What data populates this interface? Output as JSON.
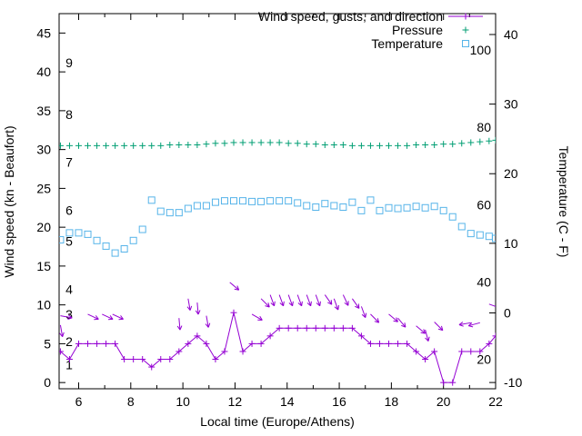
{
  "chart_data": {
    "type": "line",
    "title": "",
    "legend": [
      {
        "label": "Wind speed, gusts, and direction",
        "marker": "line-plus",
        "color": "#9400d3"
      },
      {
        "label": "Pressure",
        "marker": "plus",
        "color": "#009e73"
      },
      {
        "label": "Temperature",
        "marker": "open-square",
        "color": "#56b4e9"
      }
    ],
    "x_axis": {
      "label": "Local time (Europe/Athens)",
      "min": 5.25,
      "max": 22,
      "major_ticks": [
        6,
        8,
        10,
        12,
        14,
        16,
        18,
        20,
        22
      ],
      "minor_step": 1
    },
    "y_left": {
      "label": "Wind speed (kn - Beaufort)",
      "min": -0.8,
      "max": 47.5,
      "ticks": [
        0,
        5,
        10,
        15,
        20,
        25,
        30,
        35,
        40,
        45
      ]
    },
    "y_right": {
      "label": "Temperature (C - F)",
      "min": -10.9,
      "max": 43,
      "ticks": [
        -10,
        0,
        10,
        20,
        30,
        40
      ]
    },
    "beaufort_labels": [
      {
        "text": "1",
        "kn": 2.3
      },
      {
        "text": "2",
        "kn": 5.3
      },
      {
        "text": "3",
        "kn": 8.8
      },
      {
        "text": "4",
        "kn": 12
      },
      {
        "text": "5",
        "kn": 18.2
      },
      {
        "text": "6",
        "kn": 22.2
      },
      {
        "text": "7",
        "kn": 28.4
      },
      {
        "text": "8",
        "kn": 34.5
      },
      {
        "text": "9",
        "kn": 41.2
      }
    ],
    "fahrenheit_labels": [
      {
        "text": "20",
        "f": 20
      },
      {
        "text": "40",
        "f": 40
      },
      {
        "text": "60",
        "f": 60
      },
      {
        "text": "80",
        "f": 80
      },
      {
        "text": "100",
        "f": 100
      }
    ],
    "x": [
      5.3,
      5.65,
      6,
      6.35,
      6.7,
      7.05,
      7.4,
      7.75,
      8.1,
      8.45,
      8.8,
      9.15,
      9.5,
      9.85,
      10.2,
      10.55,
      10.9,
      11.25,
      11.6,
      11.95,
      12.3,
      12.65,
      13,
      13.35,
      13.7,
      14.05,
      14.4,
      14.75,
      15.1,
      15.45,
      15.8,
      16.15,
      16.5,
      16.85,
      17.2,
      17.55,
      17.9,
      18.25,
      18.6,
      18.95,
      19.3,
      19.65,
      20,
      20.35,
      20.7,
      21.05,
      21.4,
      21.75,
      22
    ],
    "series": {
      "wind_speed": {
        "name": "Wind speed",
        "axis": "left",
        "units": "kn",
        "color": "#9400d3",
        "y": [
          4,
          3,
          5,
          5,
          5,
          5,
          5,
          3,
          3,
          3,
          2,
          3,
          3,
          4,
          5,
          6,
          5,
          3,
          4,
          9,
          4,
          5,
          5,
          6,
          7,
          7,
          7,
          7,
          7,
          7,
          7,
          7,
          7,
          6,
          5,
          5,
          5,
          5,
          5,
          4,
          3,
          4,
          0,
          0,
          4,
          4,
          4,
          5,
          6
        ]
      },
      "gusts": {
        "name": "Gusts and direction",
        "axis": "left",
        "units": "kn",
        "color": "#9400d3",
        "arrows": [
          {
            "x": 5.3,
            "y": 8.6,
            "a": 10
          },
          {
            "x": 5.3,
            "y": 7.4,
            "a": 80
          },
          {
            "x": 6.35,
            "y": 8.8,
            "a": 25
          },
          {
            "x": 6.9,
            "y": 8.8,
            "a": 25
          },
          {
            "x": 7.3,
            "y": 8.8,
            "a": 25
          },
          {
            "x": 9.85,
            "y": 8.3,
            "a": 85
          },
          {
            "x": 10.2,
            "y": 10.8,
            "a": 80
          },
          {
            "x": 10.55,
            "y": 10.3,
            "a": 85
          },
          {
            "x": 10.9,
            "y": 8.6,
            "a": 80
          },
          {
            "x": 11.8,
            "y": 12.9,
            "a": 40
          },
          {
            "x": 12.65,
            "y": 8.8,
            "a": 30
          },
          {
            "x": 13,
            "y": 10.8,
            "a": 45
          },
          {
            "x": 13.35,
            "y": 11.3,
            "a": 70
          },
          {
            "x": 13.7,
            "y": 11.3,
            "a": 70
          },
          {
            "x": 14.05,
            "y": 11.3,
            "a": 70
          },
          {
            "x": 14.4,
            "y": 11.3,
            "a": 70
          },
          {
            "x": 14.75,
            "y": 11.3,
            "a": 70
          },
          {
            "x": 15.1,
            "y": 11.3,
            "a": 70
          },
          {
            "x": 15.45,
            "y": 11.3,
            "a": 55
          },
          {
            "x": 15.8,
            "y": 10.8,
            "a": 70
          },
          {
            "x": 16.15,
            "y": 11.3,
            "a": 65
          },
          {
            "x": 16.5,
            "y": 10.8,
            "a": 55
          },
          {
            "x": 16.85,
            "y": 9.8,
            "a": 70
          },
          {
            "x": 17.2,
            "y": 8.8,
            "a": 45
          },
          {
            "x": 17.9,
            "y": 8.8,
            "a": 40
          },
          {
            "x": 18.25,
            "y": 8.3,
            "a": 50
          },
          {
            "x": 18.95,
            "y": 7.3,
            "a": 40
          },
          {
            "x": 19.3,
            "y": 6.8,
            "a": 75
          },
          {
            "x": 19.65,
            "y": 7.8,
            "a": 45
          },
          {
            "x": 21.05,
            "y": 7.7,
            "a": 170
          },
          {
            "x": 21.4,
            "y": 7.7,
            "a": 165
          },
          {
            "x": 21.75,
            "y": 10.1,
            "a": 20
          },
          {
            "x": 22,
            "y": 10.6,
            "a": 15
          }
        ]
      },
      "pressure": {
        "name": "Pressure",
        "axis": "left",
        "color": "#009e73",
        "y": [
          30.5,
          30.5,
          30.5,
          30.5,
          30.5,
          30.5,
          30.5,
          30.5,
          30.5,
          30.5,
          30.5,
          30.5,
          30.6,
          30.6,
          30.6,
          30.6,
          30.7,
          30.8,
          30.8,
          30.9,
          30.9,
          30.9,
          30.9,
          30.9,
          30.9,
          30.8,
          30.8,
          30.7,
          30.7,
          30.6,
          30.6,
          30.6,
          30.5,
          30.5,
          30.5,
          30.5,
          30.5,
          30.5,
          30.5,
          30.6,
          30.6,
          30.6,
          30.7,
          30.7,
          30.8,
          30.9,
          31,
          31.1,
          31.2
        ]
      },
      "temperature": {
        "name": "Temperature",
        "axis": "right",
        "units": "C",
        "color": "#56b4e9",
        "y_c": [
          10.5,
          11.5,
          11.5,
          11.3,
          10.4,
          9.6,
          8.6,
          9.2,
          10.4,
          12,
          16.2,
          14.6,
          14.4,
          14.4,
          15,
          15.4,
          15.4,
          15.9,
          16.1,
          16.1,
          16.1,
          16,
          16,
          16.1,
          16.1,
          16.1,
          15.8,
          15.4,
          15.2,
          15.7,
          15.4,
          15.2,
          15.9,
          14.7,
          16.2,
          14.7,
          15.1,
          15,
          15.1,
          15.3,
          15.1,
          15.3,
          14.7,
          13.8,
          12.4,
          11.4,
          11.2,
          11,
          10.7
        ]
      }
    }
  }
}
